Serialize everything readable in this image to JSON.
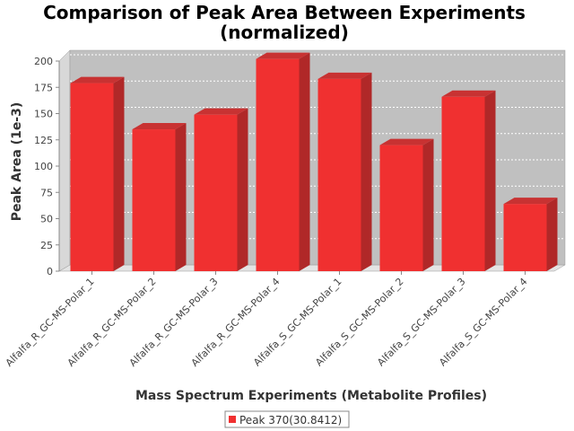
{
  "chart_data": {
    "type": "bar",
    "title": [
      "Comparison of Peak Area Between Experiments",
      "(normalized)"
    ],
    "xlabel": "Mass Spectrum Experiments (Metabolite Profiles)",
    "ylabel": "Peak Area (1e-3)",
    "ylim": [
      0,
      200
    ],
    "yticks": [
      "0",
      "25",
      "50",
      "75",
      "100",
      "125",
      "150",
      "175",
      "200"
    ],
    "categories": [
      "Alfalfa_R_GC-MS-Polar_1",
      "Alfalfa_R_GC-MS-Polar_2",
      "Alfalfa_R_GC-MS-Polar_3",
      "Alfalfa_R_GC-MS-Polar_4",
      "Alfalfa_S_GC-MS-Polar_1",
      "Alfalfa_S_GC-MS-Polar_2",
      "Alfalfa_S_GC-MS-Polar_3",
      "Alfalfa_S_GC-MS-Polar_4"
    ],
    "series": [
      {
        "name": "Peak 370(30.8412)",
        "color": "#f03030",
        "values": [
          179,
          135,
          149,
          202,
          183,
          120,
          166,
          64
        ]
      }
    ],
    "grid": true,
    "legend_position": "bottom-center",
    "style": "3d-bar",
    "plot_background": "#c0c0c0"
  }
}
